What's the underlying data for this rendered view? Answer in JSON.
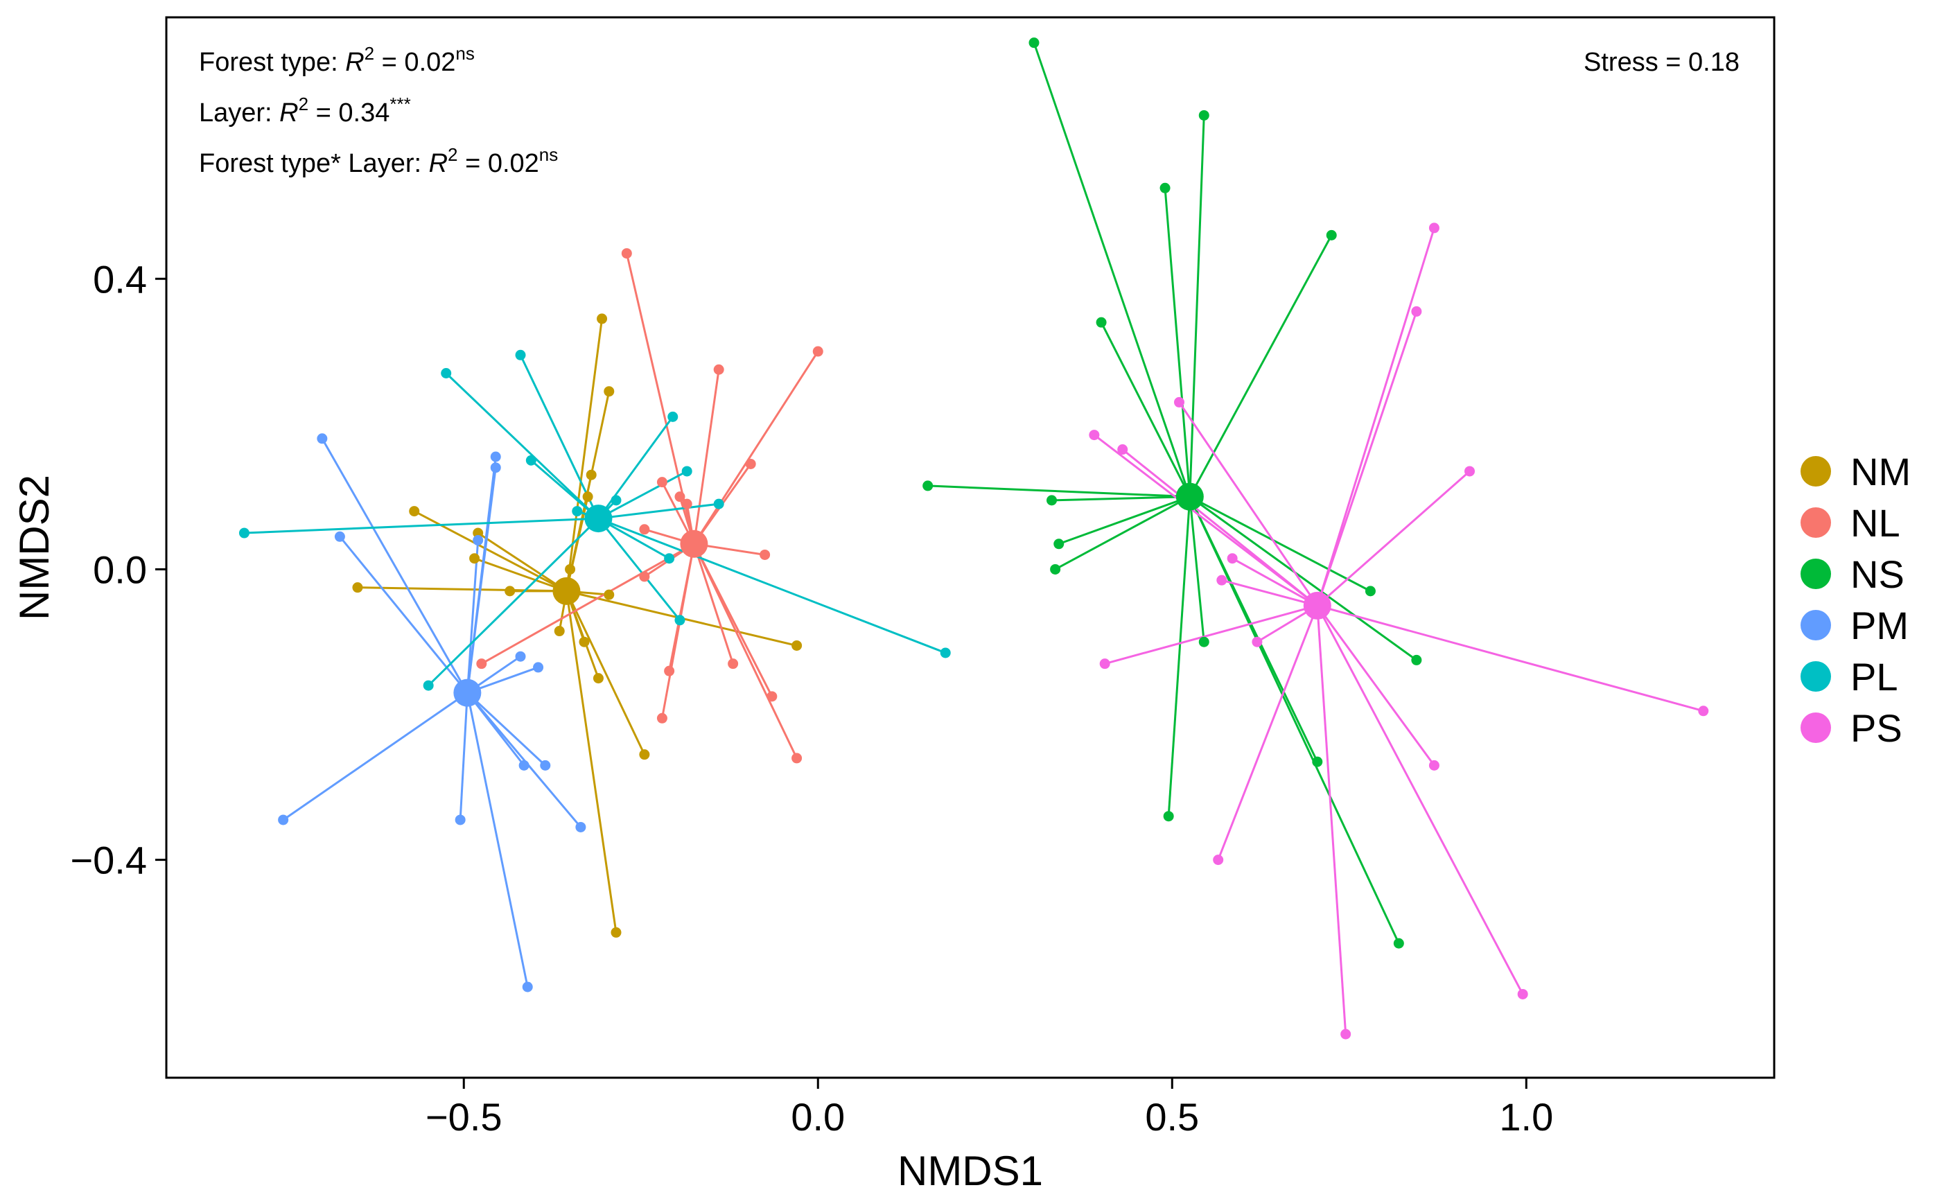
{
  "chart_data": {
    "type": "scatter",
    "subtype": "nmds-ordination-spider",
    "xlabel": "NMDS1",
    "ylabel": "NMDS2",
    "xlim": [
      -0.92,
      1.35
    ],
    "ylim": [
      -0.7,
      0.76
    ],
    "xticks": [
      -0.5,
      0.0,
      0.5,
      1.0
    ],
    "xtick_labels": [
      "−0.5",
      "0.0",
      "0.5",
      "1.0"
    ],
    "yticks": [
      -0.4,
      0.0,
      0.4
    ],
    "ytick_labels": [
      "−0.4",
      "0.0",
      "0.4"
    ],
    "grid": false,
    "legend_position": "right",
    "annotations": [
      {
        "id": "forest",
        "prefix": "Forest type: ",
        "r": "R",
        "sq": "2",
        "eq": " = 0.02",
        "sig": "ns"
      },
      {
        "id": "layer",
        "prefix": "Layer: ",
        "r": "R",
        "sq": "2",
        "eq": " = 0.34",
        "sig": "***"
      },
      {
        "id": "interaction",
        "prefix": "Forest type* Layer: ",
        "r": "R",
        "sq": "2",
        "eq": " = 0.02",
        "sig": "ns"
      }
    ],
    "stress_label": "Stress = 0.18",
    "series": [
      {
        "name": "NM",
        "color": "#C49A00",
        "centroid": [
          -0.355,
          -0.03
        ],
        "points": [
          [
            -0.305,
            0.345
          ],
          [
            -0.295,
            0.245
          ],
          [
            -0.32,
            0.13
          ],
          [
            -0.325,
            0.1
          ],
          [
            -0.57,
            0.08
          ],
          [
            -0.48,
            0.05
          ],
          [
            -0.485,
            0.015
          ],
          [
            -0.35,
            0.0
          ],
          [
            -0.65,
            -0.025
          ],
          [
            -0.435,
            -0.03
          ],
          [
            -0.295,
            -0.035
          ],
          [
            -0.365,
            -0.085
          ],
          [
            -0.33,
            -0.1
          ],
          [
            -0.03,
            -0.105
          ],
          [
            -0.31,
            -0.15
          ],
          [
            -0.245,
            -0.255
          ],
          [
            -0.285,
            -0.5
          ]
        ]
      },
      {
        "name": "NL",
        "color": "#F8766D",
        "centroid": [
          -0.175,
          0.035
        ],
        "points": [
          [
            -0.27,
            0.435
          ],
          [
            0.0,
            0.3
          ],
          [
            -0.14,
            0.275
          ],
          [
            -0.095,
            0.145
          ],
          [
            -0.22,
            0.12
          ],
          [
            -0.195,
            0.1
          ],
          [
            -0.185,
            0.09
          ],
          [
            -0.245,
            0.055
          ],
          [
            -0.075,
            0.02
          ],
          [
            -0.245,
            -0.01
          ],
          [
            -0.475,
            -0.13
          ],
          [
            -0.21,
            -0.14
          ],
          [
            -0.12,
            -0.13
          ],
          [
            -0.065,
            -0.175
          ],
          [
            -0.22,
            -0.205
          ],
          [
            -0.03,
            -0.26
          ]
        ]
      },
      {
        "name": "NS",
        "color": "#00BA38",
        "centroid": [
          0.525,
          0.1
        ],
        "points": [
          [
            0.305,
            0.725
          ],
          [
            0.545,
            0.625
          ],
          [
            0.49,
            0.525
          ],
          [
            0.725,
            0.46
          ],
          [
            0.4,
            0.34
          ],
          [
            0.155,
            0.115
          ],
          [
            0.33,
            0.095
          ],
          [
            0.34,
            0.035
          ],
          [
            0.335,
            0.0
          ],
          [
            0.78,
            -0.03
          ],
          [
            0.545,
            -0.1
          ],
          [
            0.845,
            -0.125
          ],
          [
            0.705,
            -0.265
          ],
          [
            0.495,
            -0.34
          ],
          [
            0.82,
            -0.515
          ]
        ]
      },
      {
        "name": "PM",
        "color": "#619CFF",
        "centroid": [
          -0.495,
          -0.17
        ],
        "points": [
          [
            -0.7,
            0.18
          ],
          [
            -0.455,
            0.155
          ],
          [
            -0.455,
            0.14
          ],
          [
            -0.675,
            0.045
          ],
          [
            -0.48,
            0.04
          ],
          [
            -0.42,
            -0.12
          ],
          [
            -0.395,
            -0.135
          ],
          [
            -0.415,
            -0.27
          ],
          [
            -0.385,
            -0.27
          ],
          [
            -0.755,
            -0.345
          ],
          [
            -0.505,
            -0.345
          ],
          [
            -0.335,
            -0.355
          ],
          [
            -0.41,
            -0.575
          ]
        ]
      },
      {
        "name": "PL",
        "color": "#00BFC4",
        "centroid": [
          -0.31,
          0.07
        ],
        "points": [
          [
            -0.525,
            0.27
          ],
          [
            -0.42,
            0.295
          ],
          [
            -0.405,
            0.15
          ],
          [
            -0.205,
            0.21
          ],
          [
            -0.185,
            0.135
          ],
          [
            -0.14,
            0.09
          ],
          [
            -0.285,
            0.095
          ],
          [
            -0.34,
            0.08
          ],
          [
            -0.81,
            0.05
          ],
          [
            -0.21,
            0.015
          ],
          [
            -0.195,
            -0.07
          ],
          [
            -0.55,
            -0.16
          ],
          [
            0.18,
            -0.115
          ]
        ]
      },
      {
        "name": "PS",
        "color": "#F564E3",
        "centroid": [
          0.705,
          -0.05
        ],
        "points": [
          [
            0.87,
            0.47
          ],
          [
            0.845,
            0.355
          ],
          [
            0.51,
            0.23
          ],
          [
            0.39,
            0.185
          ],
          [
            0.43,
            0.165
          ],
          [
            0.92,
            0.135
          ],
          [
            0.585,
            0.015
          ],
          [
            0.57,
            -0.015
          ],
          [
            0.62,
            -0.1
          ],
          [
            0.405,
            -0.13
          ],
          [
            1.25,
            -0.195
          ],
          [
            0.87,
            -0.27
          ],
          [
            0.565,
            -0.4
          ],
          [
            0.995,
            -0.585
          ],
          [
            0.745,
            -0.64
          ]
        ]
      }
    ]
  }
}
